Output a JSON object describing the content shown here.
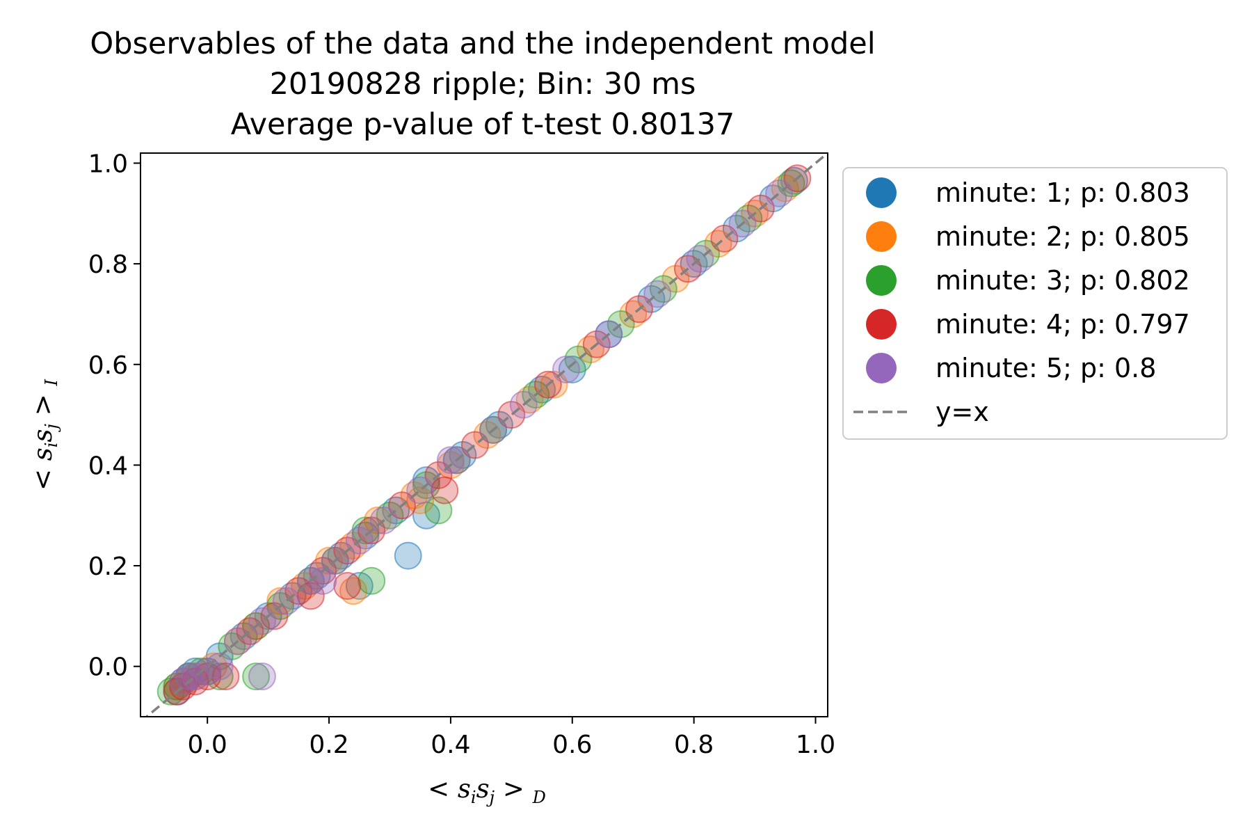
{
  "chart_data": {
    "type": "scatter",
    "title": [
      "Observables of the data and the independent model",
      "20190828 ripple; Bin: 30 ms",
      "Average p-value of t-test 0.80137"
    ],
    "xlabel": {
      "prefix": "< ",
      "s1": "s",
      "sub1": "i",
      "s2": "s",
      "sub2": "j",
      "suffix": " > ",
      "subscript": "D"
    },
    "ylabel": {
      "prefix": "< ",
      "s1": "s",
      "sub1": "i",
      "s2": "s",
      "sub2": "j",
      "suffix": " > ",
      "subscript": "I"
    },
    "xlim": [
      -0.11,
      1.02
    ],
    "ylim": [
      -0.1,
      1.02
    ],
    "xticks": [
      0.0,
      0.2,
      0.4,
      0.6,
      0.8,
      1.0
    ],
    "yticks": [
      0.0,
      0.2,
      0.4,
      0.6,
      0.8,
      1.0
    ],
    "tick_labels_x": [
      "0.0",
      "0.2",
      "0.4",
      "0.6",
      "0.8",
      "1.0"
    ],
    "tick_labels_y": [
      "0.0",
      "0.2",
      "0.4",
      "0.6",
      "0.8",
      "1.0"
    ],
    "grid": false,
    "legend_position": "outside-right-top",
    "series": [
      {
        "name": "minute: 1; p: 0.803",
        "color": "#1f77b4",
        "x": [
          -0.05,
          -0.04,
          -0.03,
          -0.02,
          0.0,
          0.02,
          0.06,
          0.1,
          0.14,
          0.18,
          0.22,
          0.26,
          0.31,
          0.36,
          0.42,
          0.48,
          0.55,
          0.6,
          0.66,
          0.73,
          0.8,
          0.87,
          0.93,
          0.965,
          0.33,
          0.36,
          0.25
        ],
        "y": [
          -0.05,
          -0.03,
          -0.02,
          -0.01,
          -0.01,
          0.02,
          0.06,
          0.1,
          0.14,
          0.18,
          0.22,
          0.26,
          0.31,
          0.37,
          0.42,
          0.48,
          0.55,
          0.59,
          0.66,
          0.73,
          0.8,
          0.87,
          0.93,
          0.965,
          0.22,
          0.3,
          0.16
        ]
      },
      {
        "name": "minute: 2; p: 0.805",
        "color": "#ff7f0e",
        "x": [
          -0.05,
          -0.035,
          -0.02,
          0.01,
          0.05,
          0.08,
          0.12,
          0.16,
          0.2,
          0.24,
          0.28,
          0.34,
          0.4,
          0.46,
          0.53,
          0.57,
          0.63,
          0.7,
          0.77,
          0.84,
          0.9,
          0.95,
          0.24,
          0.35
        ],
        "y": [
          -0.04,
          -0.03,
          -0.02,
          -0.0,
          0.05,
          0.08,
          0.13,
          0.16,
          0.21,
          0.24,
          0.29,
          0.34,
          0.4,
          0.46,
          0.53,
          0.56,
          0.63,
          0.7,
          0.77,
          0.84,
          0.9,
          0.95,
          0.15,
          0.33
        ]
      },
      {
        "name": "minute: 3; p: 0.802",
        "color": "#2ca02c",
        "x": [
          -0.06,
          -0.05,
          -0.03,
          -0.01,
          0.02,
          0.04,
          0.08,
          0.12,
          0.17,
          0.21,
          0.26,
          0.3,
          0.36,
          0.41,
          0.47,
          0.54,
          0.61,
          0.68,
          0.75,
          0.82,
          0.89,
          0.96,
          0.08,
          0.38,
          0.27
        ],
        "y": [
          -0.05,
          -0.04,
          -0.02,
          -0.01,
          -0.02,
          0.04,
          0.08,
          0.12,
          0.17,
          0.21,
          0.27,
          0.3,
          0.36,
          0.41,
          0.47,
          0.54,
          0.61,
          0.68,
          0.75,
          0.82,
          0.89,
          0.96,
          -0.02,
          0.31,
          0.17
        ]
      },
      {
        "name": "minute: 4; p: 0.797",
        "color": "#d62728",
        "x": [
          -0.05,
          -0.04,
          -0.02,
          0.0,
          0.03,
          0.07,
          0.11,
          0.15,
          0.19,
          0.23,
          0.27,
          0.32,
          0.38,
          0.44,
          0.5,
          0.56,
          0.64,
          0.71,
          0.79,
          0.85,
          0.91,
          0.97,
          0.17,
          0.39,
          0.23
        ],
        "y": [
          -0.05,
          -0.04,
          -0.03,
          -0.02,
          -0.02,
          0.07,
          0.1,
          0.15,
          0.19,
          0.23,
          0.27,
          0.32,
          0.38,
          0.44,
          0.5,
          0.56,
          0.64,
          0.71,
          0.79,
          0.85,
          0.91,
          0.97,
          0.14,
          0.35,
          0.16
        ]
      },
      {
        "name": "minute: 5; p: 0.8",
        "color": "#9467bd",
        "x": [
          -0.04,
          -0.03,
          -0.02,
          0.0,
          0.02,
          0.05,
          0.09,
          0.13,
          0.17,
          0.21,
          0.25,
          0.29,
          0.35,
          0.41,
          0.47,
          0.52,
          0.59,
          0.66,
          0.74,
          0.81,
          0.88,
          0.94,
          0.09,
          0.19,
          0.4
        ],
        "y": [
          -0.03,
          -0.02,
          -0.02,
          -0.01,
          0.0,
          0.05,
          0.09,
          0.13,
          0.17,
          0.21,
          0.25,
          0.29,
          0.35,
          0.41,
          0.47,
          0.52,
          0.59,
          0.66,
          0.74,
          0.81,
          0.88,
          0.94,
          -0.02,
          0.17,
          0.41
        ]
      }
    ],
    "reference_line": {
      "name": "y=x",
      "color": "#808080",
      "style": "dashed"
    }
  }
}
